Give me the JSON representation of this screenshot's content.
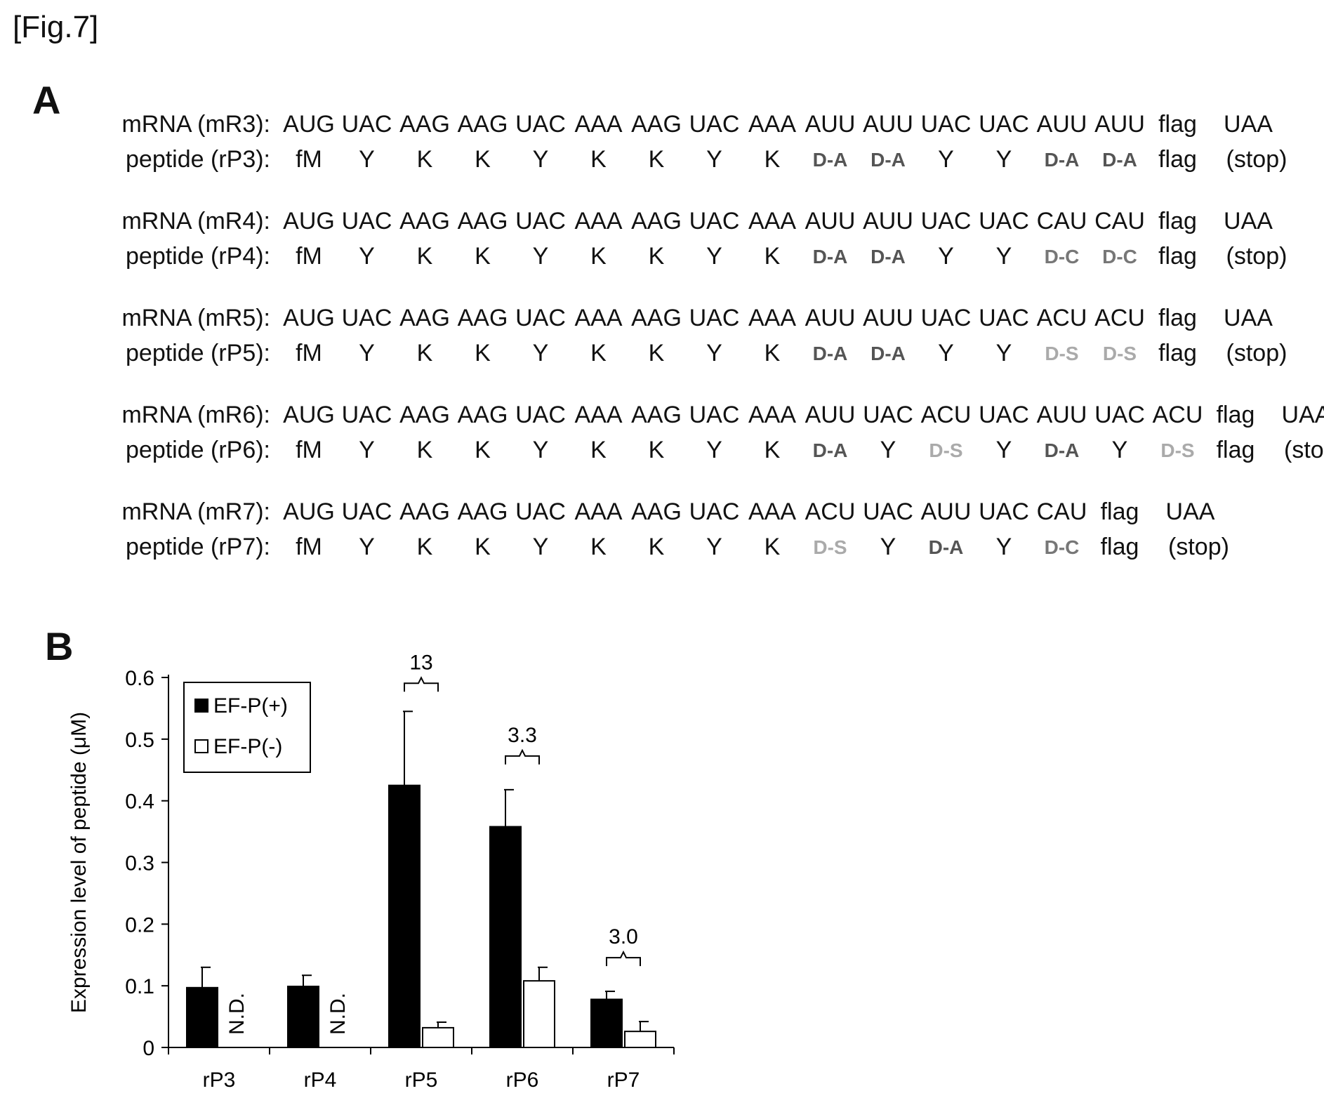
{
  "figure_label": "[Fig.7]",
  "panels": {
    "a_label": "A",
    "b_label": "B"
  },
  "sequences": [
    {
      "mrna_label": "mRNA (mR3):",
      "peptide_label": "peptide (rP3):",
      "codons": [
        "AUG",
        "UAC",
        "AAG",
        "AAG",
        "UAC",
        "AAA",
        "AAG",
        "UAC",
        "AAA",
        "AUU",
        "AUU",
        "UAC",
        "UAC",
        "AUU",
        "AUU",
        "flag",
        "UAA"
      ],
      "residues": [
        "fM",
        "Y",
        "K",
        "K",
        "Y",
        "K",
        "K",
        "Y",
        "K",
        "D-A",
        "D-A",
        "Y",
        "Y",
        "D-A",
        "D-A",
        "flag",
        "(stop)"
      ]
    },
    {
      "mrna_label": "mRNA (mR4):",
      "peptide_label": "peptide (rP4):",
      "codons": [
        "AUG",
        "UAC",
        "AAG",
        "AAG",
        "UAC",
        "AAA",
        "AAG",
        "UAC",
        "AAA",
        "AUU",
        "AUU",
        "UAC",
        "UAC",
        "CAU",
        "CAU",
        "flag",
        "UAA"
      ],
      "residues": [
        "fM",
        "Y",
        "K",
        "K",
        "Y",
        "K",
        "K",
        "Y",
        "K",
        "D-A",
        "D-A",
        "Y",
        "Y",
        "D-C",
        "D-C",
        "flag",
        "(stop)"
      ]
    },
    {
      "mrna_label": "mRNA (mR5):",
      "peptide_label": "peptide (rP5):",
      "codons": [
        "AUG",
        "UAC",
        "AAG",
        "AAG",
        "UAC",
        "AAA",
        "AAG",
        "UAC",
        "AAA",
        "AUU",
        "AUU",
        "UAC",
        "UAC",
        "ACU",
        "ACU",
        "flag",
        "UAA"
      ],
      "residues": [
        "fM",
        "Y",
        "K",
        "K",
        "Y",
        "K",
        "K",
        "Y",
        "K",
        "D-A",
        "D-A",
        "Y",
        "Y",
        "D-S",
        "D-S",
        "flag",
        "(stop)"
      ]
    },
    {
      "mrna_label": "mRNA (mR6):",
      "peptide_label": "peptide (rP6):",
      "codons": [
        "AUG",
        "UAC",
        "AAG",
        "AAG",
        "UAC",
        "AAA",
        "AAG",
        "UAC",
        "AAA",
        "AUU",
        "UAC",
        "ACU",
        "UAC",
        "AUU",
        "UAC",
        "ACU",
        "flag",
        "UAA"
      ],
      "residues": [
        "fM",
        "Y",
        "K",
        "K",
        "Y",
        "K",
        "K",
        "Y",
        "K",
        "D-A",
        "Y",
        "D-S",
        "Y",
        "D-A",
        "Y",
        "D-S",
        "flag",
        "(stop)"
      ]
    },
    {
      "mrna_label": "mRNA (mR7):",
      "peptide_label": "peptide (rP7):",
      "codons": [
        "AUG",
        "UAC",
        "AAG",
        "AAG",
        "UAC",
        "AAA",
        "AAG",
        "UAC",
        "AAA",
        "ACU",
        "UAC",
        "AUU",
        "UAC",
        "CAU",
        "flag",
        "UAA"
      ],
      "residues": [
        "fM",
        "Y",
        "K",
        "K",
        "Y",
        "K",
        "K",
        "Y",
        "K",
        "D-S",
        "Y",
        "D-A",
        "Y",
        "D-C",
        "flag",
        "(stop)"
      ]
    }
  ],
  "residue_colors": {
    "D-A": "#555555",
    "D-C": "#777777",
    "D-S": "#aaaaaa",
    "default": "#111111"
  },
  "chart_data": {
    "type": "bar",
    "title": "",
    "xlabel": "",
    "ylabel": "Expression level of peptide (μM)",
    "categories": [
      "rP3",
      "rP4",
      "rP5",
      "rP6",
      "rP7"
    ],
    "series": [
      {
        "name": "EF-P(+)",
        "values": [
          0.097,
          0.099,
          0.425,
          0.358,
          0.078
        ],
        "errors": [
          0.033,
          0.018,
          0.12,
          0.06,
          0.013
        ],
        "color": "#000000"
      },
      {
        "name": "EF-P(-)",
        "values": [
          null,
          null,
          0.032,
          0.108,
          0.026
        ],
        "errors": [
          null,
          null,
          0.009,
          0.022,
          0.016
        ],
        "color": "#ffffff"
      }
    ],
    "not_detected_label": "N.D.",
    "fold_changes": [
      "",
      "",
      "13",
      "3.3",
      "3.0"
    ],
    "yticks": [
      "0",
      "0.1",
      "0.2",
      "0.3",
      "0.4",
      "0.5",
      "0.6"
    ],
    "ylim": [
      0,
      0.6
    ],
    "grid": false,
    "legend_position": "top-left"
  }
}
